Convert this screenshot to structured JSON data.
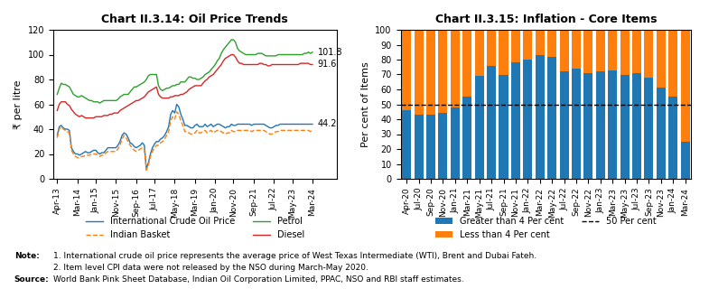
{
  "chart_data": [
    {
      "type": "line",
      "title": "Chart II.3.14: Oil Price Trends",
      "y_label": "₹ per litre",
      "categories": [
        "Apr-13",
        null,
        null,
        null,
        null,
        null,
        null,
        null,
        null,
        null,
        "Mar-14",
        null,
        null,
        null,
        null,
        null,
        null,
        null,
        null,
        "Jan-15",
        null,
        null,
        null,
        null,
        null,
        null,
        null,
        null,
        null,
        "Nov-15",
        null,
        null,
        null,
        null,
        null,
        null,
        null,
        null,
        null,
        "Sep-16",
        null,
        null,
        null,
        null,
        null,
        null,
        null,
        null,
        "Jul-17",
        null,
        null,
        null,
        null,
        null,
        null,
        null,
        null,
        null,
        "May-18",
        null,
        null,
        null,
        null,
        null,
        null,
        null,
        null,
        null,
        "Mar-19",
        null,
        null,
        null,
        null,
        null,
        null,
        null,
        null,
        null,
        "Jan-20",
        null,
        null,
        null,
        null,
        null,
        null,
        null,
        null,
        "Nov-20",
        null,
        null,
        null,
        null,
        null,
        null,
        null,
        null,
        null,
        "Sep-21",
        null,
        null,
        null,
        null,
        null,
        null,
        null,
        null,
        null,
        "Jul-22",
        null,
        null,
        null,
        null,
        null,
        null,
        null,
        null,
        "May-23",
        null,
        null,
        null,
        null,
        null,
        null,
        null,
        null,
        null,
        "Mar-24"
      ],
      "ylim": [
        0,
        120
      ],
      "yticks": [
        0,
        20,
        40,
        60,
        80,
        100,
        120
      ],
      "legend": "lower center",
      "series": [
        {
          "name": "International Crude Oil Price",
          "values": [
            35,
            42,
            43,
            41,
            40,
            40,
            39,
            25,
            22,
            20,
            20,
            19,
            20,
            21,
            22,
            21,
            21,
            22,
            23,
            23,
            21,
            20,
            21,
            21,
            23,
            25,
            25,
            25,
            25,
            25,
            27,
            30,
            35,
            37,
            36,
            33,
            29,
            28,
            26,
            25,
            26,
            27,
            29,
            27,
            8,
            13,
            20,
            25,
            28,
            30,
            30,
            32,
            33,
            35,
            38,
            42,
            52,
            55,
            53,
            60,
            58,
            52,
            48,
            43,
            43,
            42,
            41,
            41,
            43,
            44,
            42,
            42,
            42,
            44,
            42,
            43,
            44,
            42,
            43,
            44,
            44,
            43,
            42,
            41,
            42,
            42,
            44,
            43,
            43,
            44,
            44,
            44,
            44,
            44,
            44,
            44,
            43,
            44,
            44,
            44,
            44,
            44,
            44,
            43,
            42,
            41,
            41,
            42,
            43,
            43,
            44,
            44,
            44,
            44,
            44,
            44,
            44,
            44,
            44,
            44,
            44,
            44,
            44,
            44,
            44,
            44,
            44
          ]
        },
        {
          "name": "Indian Basket",
          "line_style": "dashed",
          "values": [
            33,
            40,
            42,
            40,
            39,
            38,
            37,
            23,
            20,
            18,
            17,
            17,
            18,
            18,
            19,
            19,
            19,
            20,
            20,
            20,
            19,
            18,
            19,
            19,
            21,
            22,
            22,
            22,
            22,
            22,
            24,
            27,
            32,
            35,
            33,
            30,
            27,
            25,
            23,
            22,
            23,
            24,
            25,
            24,
            7,
            11,
            18,
            22,
            25,
            27,
            27,
            29,
            30,
            32,
            35,
            38,
            47,
            50,
            48,
            54,
            52,
            47,
            43,
            38,
            38,
            37,
            36,
            36,
            37,
            39,
            37,
            37,
            38,
            39,
            37,
            38,
            39,
            37,
            38,
            39,
            39,
            38,
            37,
            36,
            37,
            37,
            39,
            38,
            38,
            39,
            39,
            39,
            39,
            39,
            39,
            39,
            38,
            39,
            39,
            39,
            39,
            39,
            39,
            38,
            37,
            36,
            36,
            37,
            38,
            38,
            39,
            39,
            39,
            39,
            39,
            39,
            39,
            39,
            39,
            39,
            39,
            39,
            39,
            39,
            39,
            38,
            39
          ]
        },
        {
          "name": "Petrol",
          "values": [
            68,
            73,
            77,
            76,
            76,
            75,
            74,
            71,
            68,
            67,
            66,
            66,
            67,
            66,
            65,
            64,
            63,
            63,
            62,
            62,
            62,
            61,
            62,
            63,
            63,
            63,
            63,
            63,
            63,
            63,
            64,
            66,
            67,
            68,
            68,
            68,
            70,
            72,
            74,
            74,
            75,
            76,
            77,
            78,
            80,
            83,
            84,
            84,
            84,
            84,
            75,
            72,
            71,
            72,
            73,
            73,
            74,
            75,
            75,
            76,
            76,
            78,
            78,
            78,
            80,
            82,
            82,
            81,
            81,
            80,
            80,
            81,
            82,
            84,
            85,
            86,
            88,
            90,
            92,
            95,
            97,
            101,
            104,
            106,
            108,
            110,
            112,
            112,
            110,
            105,
            103,
            102,
            101,
            100,
            100,
            100,
            100,
            100,
            100,
            101,
            101,
            101,
            100,
            99,
            99,
            99,
            99,
            99,
            99,
            100,
            100,
            100,
            100,
            100,
            100,
            100,
            100,
            100,
            100,
            100,
            100,
            100,
            101,
            101,
            102,
            101,
            102
          ]
        },
        {
          "name": "Diesel",
          "values": [
            55,
            60,
            62,
            62,
            62,
            60,
            59,
            56,
            54,
            52,
            51,
            50,
            51,
            50,
            49,
            49,
            49,
            49,
            49,
            50,
            50,
            50,
            50,
            51,
            51,
            51,
            52,
            52,
            53,
            53,
            53,
            55,
            56,
            57,
            58,
            59,
            60,
            61,
            62,
            63,
            63,
            64,
            65,
            66,
            68,
            70,
            71,
            72,
            73,
            74,
            68,
            66,
            65,
            65,
            65,
            65,
            66,
            66,
            67,
            67,
            67,
            68,
            68,
            69,
            70,
            72,
            73,
            74,
            75,
            75,
            75,
            75,
            77,
            79,
            80,
            82,
            83,
            84,
            86,
            88,
            90,
            92,
            95,
            97,
            98,
            99,
            100,
            100,
            98,
            95,
            93,
            93,
            92,
            92,
            92,
            92,
            92,
            92,
            92,
            92,
            93,
            93,
            92,
            92,
            91,
            91,
            92,
            92,
            92,
            92,
            92,
            92,
            92,
            92,
            92,
            92,
            92,
            92,
            92,
            92,
            93,
            93,
            93,
            93,
            93,
            92,
            92
          ]
        }
      ],
      "annotations": [
        {
          "text": "101.8",
          "series": "Petrol"
        },
        {
          "text": "91.6",
          "series": "Diesel"
        },
        {
          "text": "44.2",
          "series": "International Crude Oil Price"
        }
      ]
    },
    {
      "type": "bar",
      "stacked": true,
      "title": "Chart II.3.15: Inflation - Core Items",
      "y_label": "Per cent of Items",
      "categories": [
        "Apr-20",
        "Jul-20",
        "Sep-20",
        "Nov-20",
        "Jan-21",
        "Mar-21",
        "May-21",
        "Jul-21",
        "Sep-21",
        "Nov-21",
        "Jan-22",
        "Mar-22",
        "May-22",
        "Jul-22",
        "Sep-22",
        "Nov-22",
        "Jan-23",
        "Mar-23",
        "May-23",
        "Jul-23",
        "Sep-23",
        "Nov-23",
        "Jan-24",
        "Mar-24"
      ],
      "ylim": [
        0,
        100
      ],
      "yticks": [
        0,
        10,
        20,
        30,
        40,
        50,
        60,
        70,
        80,
        90,
        100
      ],
      "legend": "lower center",
      "series": [
        {
          "name": "Greater than 4 Per cent",
          "values": [
            46,
            43,
            43,
            44,
            48,
            55,
            69,
            76,
            70,
            78,
            80,
            83,
            82,
            72,
            74,
            71,
            72,
            73,
            70,
            71,
            68,
            61,
            55,
            25
          ]
        },
        {
          "name": "Less than 4 Per cent",
          "values": [
            54,
            57,
            57,
            56,
            52,
            45,
            31,
            24,
            30,
            22,
            20,
            17,
            18,
            28,
            26,
            29,
            28,
            27,
            30,
            29,
            32,
            39,
            45,
            75
          ]
        }
      ],
      "reference_lines": [
        {
          "name": "50 Per cent",
          "value": 50,
          "color": "#000000",
          "line_style": "dashed"
        }
      ]
    }
  ],
  "notes": {
    "label": "Note:",
    "lines": [
      "1. International crude oil price represents the average price of West Texas Intermediate (WTI), Brent and Dubai Fateh.",
      "2. Item level CPI data were not released by the NSO during March-May 2020."
    ]
  },
  "source": {
    "label": "Source:",
    "text": "World Bank Pink Sheet Database, Indian Oil Corporation Limited, PPAC, NSO and RBI staff estimates."
  }
}
